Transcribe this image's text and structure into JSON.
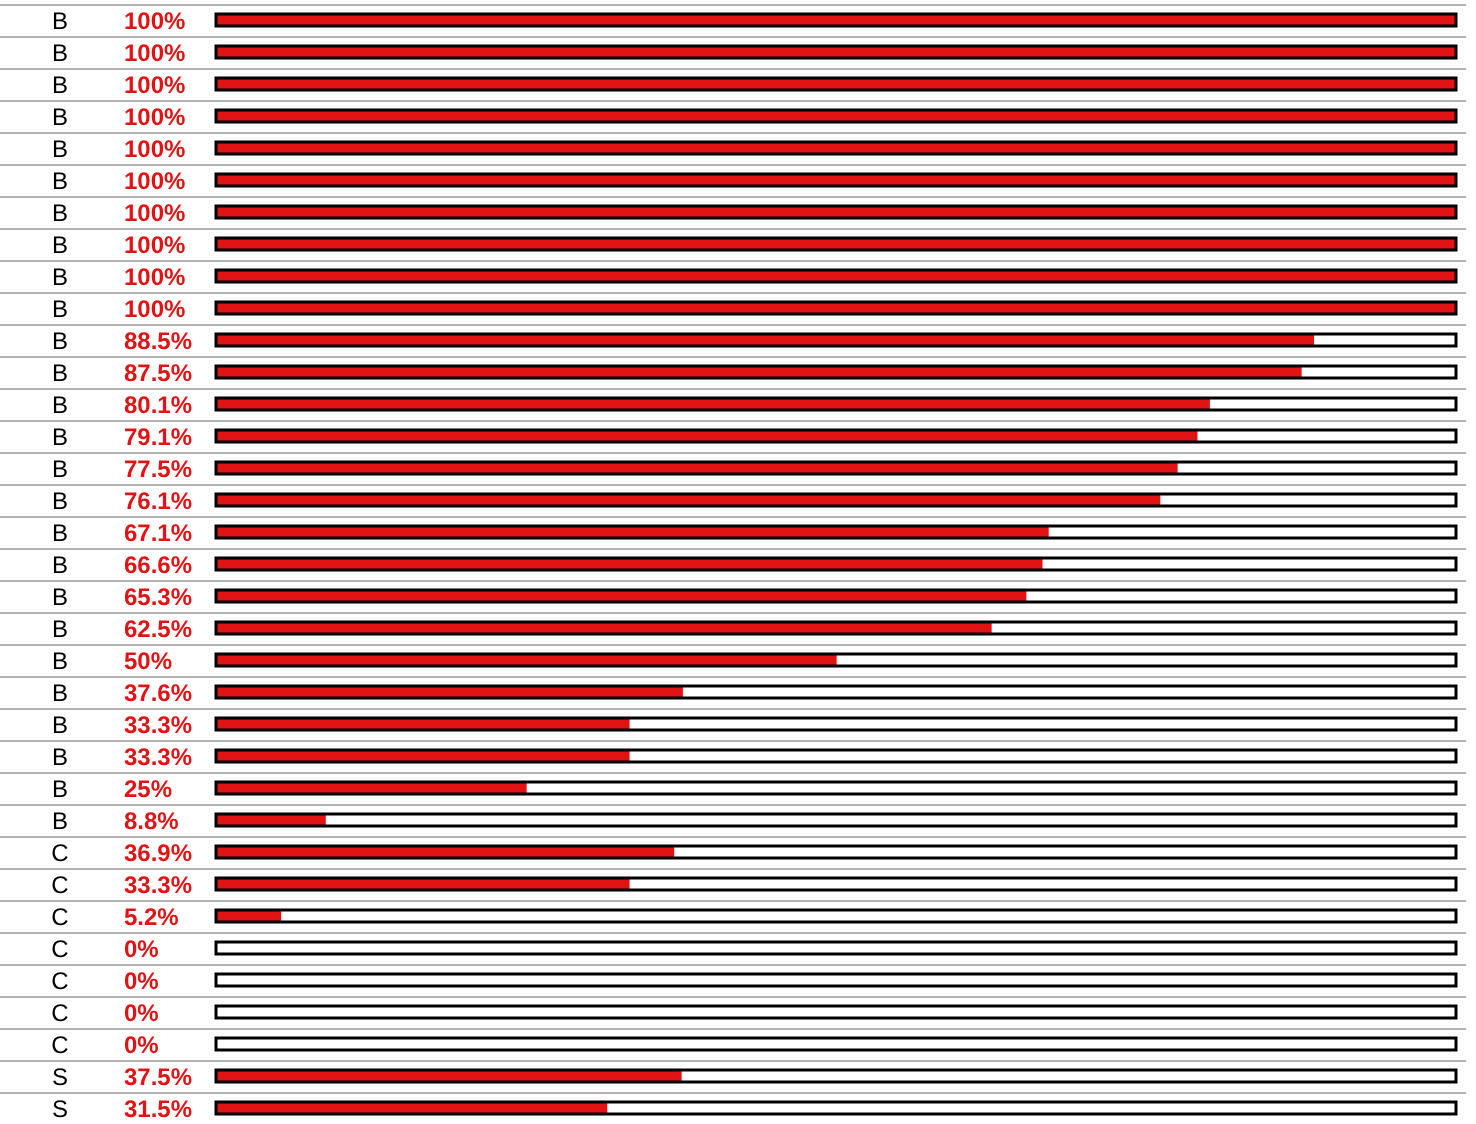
{
  "chart_data": {
    "type": "bar",
    "orientation": "horizontal",
    "categories": [
      "B",
      "B",
      "B",
      "B",
      "B",
      "B",
      "B",
      "B",
      "B",
      "B",
      "B",
      "B",
      "B",
      "B",
      "B",
      "B",
      "B",
      "B",
      "B",
      "B",
      "B",
      "B",
      "B",
      "B",
      "B",
      "B",
      "C",
      "C",
      "C",
      "C",
      "C",
      "C",
      "C",
      "S",
      "S"
    ],
    "values": [
      100,
      100,
      100,
      100,
      100,
      100,
      100,
      100,
      100,
      100,
      88.5,
      87.5,
      80.1,
      79.1,
      77.5,
      76.1,
      67.1,
      66.6,
      65.3,
      62.5,
      50,
      37.6,
      33.3,
      33.3,
      25,
      8.8,
      36.9,
      33.3,
      5.2,
      0,
      0,
      0,
      0,
      37.5,
      31.5
    ],
    "value_labels": [
      "100%",
      "100%",
      "100%",
      "100%",
      "100%",
      "100%",
      "100%",
      "100%",
      "100%",
      "100%",
      "88.5%",
      "87.5%",
      "80.1%",
      "79.1%",
      "77.5%",
      "76.1%",
      "67.1%",
      "66.6%",
      "65.3%",
      "62.5%",
      "50%",
      "37.6%",
      "33.3%",
      "33.3%",
      "25%",
      "8.8%",
      "36.9%",
      "33.3%",
      "5.2%",
      "0%",
      "0%",
      "0%",
      "0%",
      "37.5%",
      "31.5%"
    ],
    "color": "#e01414",
    "xlim": [
      0,
      100
    ],
    "grid": "y",
    "tick_labels": "y",
    "legend": false
  }
}
